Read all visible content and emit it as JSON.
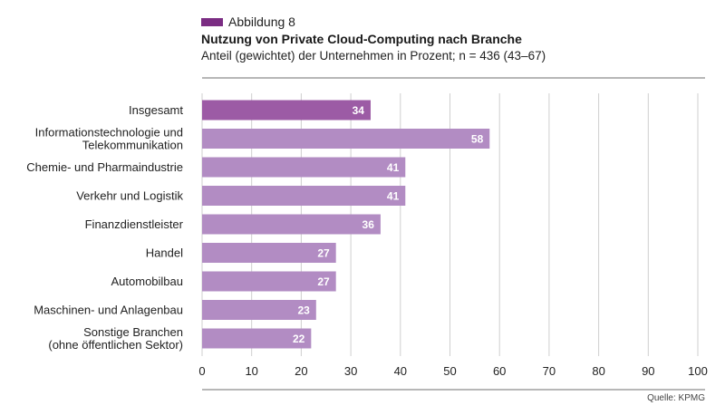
{
  "header": {
    "figure_label": "Abbildung 8",
    "title": "Nutzung von Private Cloud-Computing nach Branche",
    "subtitle": "Anteil (gewichtet) der Unternehmen in Prozent; n = 436 (43–67)"
  },
  "source": "Quelle: KPMG",
  "colors": {
    "highlight_bar": "#9c5ba5",
    "bar": "#b28cc3",
    "figure_swatch": "#7b2d83",
    "grid": "#cfcfcf",
    "rule": "#6f6f6f"
  },
  "chart_data": {
    "type": "bar",
    "orientation": "horizontal",
    "title": "Nutzung von Private Cloud-Computing nach Branche",
    "subtitle": "Anteil (gewichtet) der Unternehmen in Prozent; n = 436 (43–67)",
    "categories": [
      "Insgesamt",
      "Informationstechnologie und\nTelekommunikation",
      "Chemie- und Pharmaindustrie",
      "Verkehr und Logistik",
      "Finanzdienstleister",
      "Handel",
      "Automobilbau",
      "Maschinen- und Anlagenbau",
      "Sonstige Branchen\n(ohne öffentlichen Sektor)"
    ],
    "values": [
      34,
      58,
      41,
      41,
      36,
      27,
      27,
      23,
      22
    ],
    "highlight": "Insgesamt",
    "xlim": [
      0,
      100
    ],
    "xticks": [
      0,
      10,
      20,
      30,
      40,
      50,
      60,
      70,
      80,
      90,
      100
    ],
    "grid": true,
    "xlabel": "",
    "ylabel": ""
  }
}
